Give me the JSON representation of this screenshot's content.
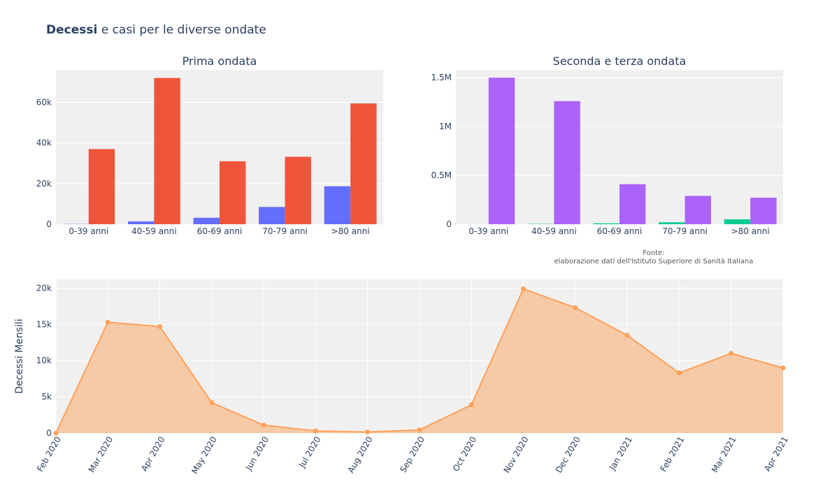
{
  "title_bold": "Decessi",
  "title_rest": " e casi per le diverse ondate",
  "source": {
    "line1": "Fonte:",
    "line2": "elaborazione dati dell'Istituto Superiore di Sanità Italiana"
  },
  "colors": {
    "background": "#f0f0f0",
    "deaths_wave1": "#636efa",
    "cases_wave1": "#ef553b",
    "deaths_wave2": "#00cc96",
    "cases_wave2": "#ab63fa",
    "monthly_line": "#ffa15a",
    "monthly_fill": "#f6c7a1"
  },
  "chart_data": [
    {
      "type": "bar",
      "title": "Prima ondata",
      "categories": [
        "0-39 anni",
        "40-59 anni",
        "60-69 anni",
        "70-79 anni",
        ">80 anni"
      ],
      "series": [
        {
          "values": [
            100,
            1400,
            3200,
            8500,
            18700
          ]
        },
        {
          "values": [
            37000,
            72000,
            31000,
            33200,
            59500
          ]
        }
      ],
      "ylim": [
        0,
        76000
      ],
      "yticks": [
        0,
        20000,
        40000,
        60000
      ],
      "ytick_labels": [
        "0",
        "20k",
        "40k",
        "60k"
      ]
    },
    {
      "type": "bar",
      "title": "Seconda e terza ondata",
      "categories": [
        "0-39 anni",
        "40-59 anni",
        "60-69 anni",
        "70-79 anni",
        ">80 anni"
      ],
      "series": [
        {
          "values": [
            500,
            3000,
            9000,
            20000,
            50000
          ]
        },
        {
          "values": [
            1500000,
            1260000,
            410000,
            290000,
            272000
          ]
        }
      ],
      "ylim": [
        0,
        1580000
      ],
      "yticks": [
        0,
        500000,
        1000000,
        1500000
      ],
      "ytick_labels": [
        "0",
        "0.5M",
        "1M",
        "1.5M"
      ]
    },
    {
      "type": "area",
      "ylabel": "Decessi Mensili",
      "x": [
        "Feb 2020",
        "Mar 2020",
        "Apr 2020",
        "May 2020",
        "Jun 2020",
        "Jul 2020",
        "Aug 2020",
        "Sep 2020",
        "Oct 2020",
        "Nov 2020",
        "Dec 2020",
        "Jan 2021",
        "Feb 2021",
        "Mar 2021",
        "Apr 2021"
      ],
      "values": [
        0,
        15300,
        14700,
        4200,
        1100,
        300,
        150,
        450,
        3900,
        19900,
        17300,
        13500,
        8300,
        11000,
        9000
      ],
      "ylim": [
        0,
        21200
      ],
      "yticks": [
        0,
        5000,
        10000,
        15000,
        20000
      ],
      "ytick_labels": [
        "0",
        "5k",
        "10k",
        "15k",
        "20k"
      ]
    }
  ]
}
